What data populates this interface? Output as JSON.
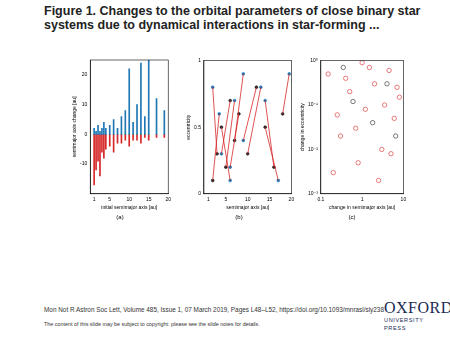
{
  "slide": {
    "title": "Figure 1. Changes to the orbital parameters of close binary star systems due to dynamical interactions in star-forming ...",
    "citation": "Mon Not R Astron Soc Lett, Volume 485, Issue 1, 07 March 2019, Pages L48–L52, https://doi.org/10.1093/mnrasl/sly238",
    "notice": "The content of this slide may be subject to copyright: please see the slide notes for details.",
    "publisher": "OXFORD",
    "publisher_sub": "UNIVERSITY PRESS"
  },
  "chart_data": [
    {
      "type": "bar",
      "title": "(a)",
      "x_label": "initial semimajor axis [au]",
      "y_label": "semimajor axis change [au]",
      "x": [
        1,
        1.5,
        2,
        2.5,
        3,
        3.5,
        4,
        5,
        6,
        7,
        8,
        9,
        10,
        11,
        12,
        13,
        14,
        15,
        17,
        19
      ],
      "series": [
        {
          "color": "#1f77b4",
          "values": [
            2,
            1,
            3,
            1,
            2,
            4,
            2,
            3,
            5,
            2,
            6,
            8,
            22,
            4,
            10,
            24,
            6,
            25,
            12,
            8
          ]
        },
        {
          "color": "#d62728",
          "values": [
            -17,
            -12,
            -9,
            -14,
            -6,
            -8,
            -5,
            -4,
            -6,
            -3,
            -3,
            -2,
            -4,
            -2,
            -2,
            -3,
            -1,
            -2,
            -1,
            -1
          ]
        }
      ],
      "xlim": [
        0,
        20
      ],
      "xticks": [
        1,
        5,
        10,
        15,
        20
      ],
      "ylim": [
        -20,
        25
      ],
      "yticks": [
        -10,
        0,
        10,
        20
      ],
      "grid": false
    },
    {
      "type": "scatter",
      "title": "(b)",
      "x_label": "semimajor axis [au]",
      "y_label": "eccentricity",
      "color": "#d62728",
      "line_style": "solid",
      "series": [
        {
          "color": "#222222",
          "marker": "circle",
          "x": [
            2,
            3,
            4,
            5,
            6,
            7,
            8,
            10,
            12,
            14,
            16,
            18
          ],
          "values": [
            0.1,
            0.3,
            0.5,
            0.2,
            0.7,
            0.4,
            0.6,
            0.3,
            0.8,
            0.5,
            0.2,
            0.6
          ]
        },
        {
          "color": "#1f77b4",
          "marker": "circle",
          "x": [
            3.5,
            2,
            6,
            7,
            4,
            9,
            6,
            13,
            9,
            17,
            14,
            19.5
          ],
          "values": [
            0.6,
            0.8,
            0.1,
            0.7,
            0.3,
            0.9,
            0.2,
            0.8,
            0.4,
            0.1,
            0.7,
            0.9
          ]
        }
      ],
      "xlim": [
        0,
        20
      ],
      "xticks": [
        1,
        5,
        10,
        15,
        20
      ],
      "ylim": [
        0,
        1
      ],
      "yticks": [
        0,
        0.5,
        1
      ],
      "grid": false
    },
    {
      "type": "scatter",
      "title": "(c)",
      "x_label": "change in semimajor axis [au]",
      "y_label": "change in eccentricity",
      "log": true,
      "series": [
        {
          "color": "#d62728",
          "marker": "open_circle",
          "x": [
            0.15,
            0.3,
            0.5,
            0.8,
            1.2,
            2,
            3,
            4.5,
            6,
            8,
            0.2,
            0.4,
            0.7,
            1.5,
            2.5,
            3.5,
            5,
            7,
            0.25,
            1
          ],
          "values": [
            0.5,
            0.02,
            0.2,
            0.005,
            0.08,
            0.3,
            0.01,
            0.6,
            0.05,
            0.15,
            0.003,
            0.4,
            0.03,
            0.7,
            0.002,
            0.1,
            0.008,
            0.25,
            0.06,
            0.9
          ]
        },
        {
          "color": "#222222",
          "marker": "open_circle",
          "x": [
            0.6,
            1.8,
            4,
            0.35,
            6.5
          ],
          "values": [
            0.12,
            0.04,
            0.3,
            0.7,
            0.02
          ]
        }
      ],
      "xlim": [
        0.1,
        10
      ],
      "xticks": [
        0.1,
        1,
        10
      ],
      "ylim": [
        0.001,
        1
      ],
      "yticks": [
        {
          "value": 0.001,
          "label": "10⁻³"
        },
        {
          "value": 0.01,
          "label": "10⁻²"
        },
        {
          "value": 0.1,
          "label": "10⁻¹"
        },
        {
          "value": 1,
          "label": "10⁰"
        }
      ],
      "grid": false
    }
  ]
}
